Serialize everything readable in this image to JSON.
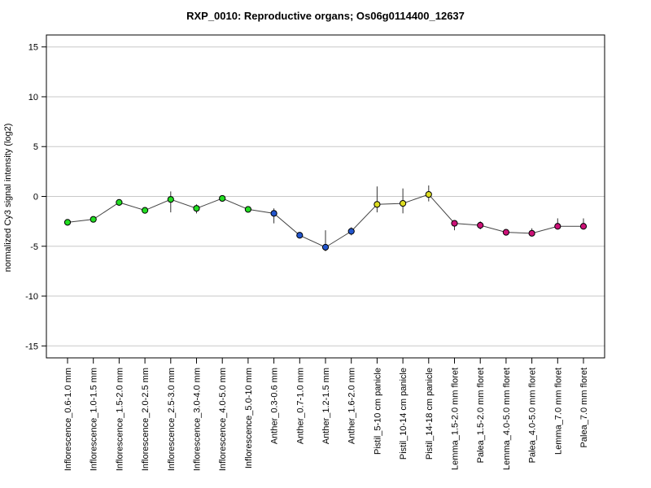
{
  "chart_data": {
    "type": "line",
    "title": "RXP_0010: Reproductive organs; Os06g0114400_12637",
    "xlabel": "",
    "ylabel": "normalized Cy3 signal intensity (log2)",
    "ylim": [
      -16.2,
      16.2
    ],
    "yticks": [
      -15,
      -10,
      -5,
      0,
      5,
      10,
      15
    ],
    "grid": "horizontal",
    "categories": [
      "Inflorescence_0.6-1.0 mm",
      "Inflorescence_1.0-1.5 mm",
      "Inflorescence_1.5-2.0 mm",
      "Inflorescence_2.0-2.5 mm",
      "Inflorescence_2.5-3.0 mm",
      "Inflorescence_3.0-4.0 mm",
      "Inflorescence_4.0-5.0 mm",
      "Inflorescence_5.0-10 mm",
      "Anther_0.3-0.6 mm",
      "Anther_0.7-1.0 mm",
      "Anther_1.2-1.5 mm",
      "Anther_1.6-2.0 mm",
      "Pistil_5-10 cm panicle",
      "Pistil_10-14 cm panicle",
      "Pistil_14-18 cm panicle",
      "Lemma_1.5-2.0 mm floret",
      "Palea_1.5-2.0 mm floret",
      "Lemma_4.0-5.0 mm floret",
      "Palea_4.0-5.0 mm floret",
      "Lemma_7.0 mm floret",
      "Palea_7.0 mm floret"
    ],
    "series": [
      {
        "values": [
          -2.6,
          -2.3,
          -0.6,
          -1.4,
          -0.3,
          -1.2,
          -0.2,
          -1.3,
          -1.7,
          -3.9,
          -5.1,
          -3.5,
          -0.8,
          -0.7,
          0.2,
          -2.7,
          -2.9,
          -3.6,
          -3.7,
          -3.0,
          -3.0
        ],
        "error_low": [
          -2.7,
          -2.5,
          -0.8,
          -1.5,
          -1.6,
          -1.7,
          -0.4,
          -1.4,
          -2.7,
          -4.1,
          -5.5,
          -3.9,
          -1.6,
          -1.7,
          -0.5,
          -3.4,
          -3.3,
          -3.7,
          -3.9,
          -3.3,
          -3.2
        ],
        "error_high": [
          -2.5,
          -2.1,
          -0.4,
          -1.3,
          0.5,
          -0.8,
          0.0,
          -1.2,
          -1.2,
          -3.7,
          -3.4,
          -3.1,
          1.0,
          0.8,
          1.1,
          -2.5,
          -2.5,
          -3.5,
          -3.2,
          -2.2,
          -2.2
        ],
        "colors": [
          "#22dd22",
          "#22dd22",
          "#22dd22",
          "#22dd22",
          "#22dd22",
          "#22dd22",
          "#22dd22",
          "#22dd22",
          "#2255cc",
          "#2255cc",
          "#2255cc",
          "#2255cc",
          "#dddd22",
          "#dddd22",
          "#dddd22",
          "#cc1177",
          "#cc1177",
          "#cc1177",
          "#cc1177",
          "#cc1177",
          "#cc1177"
        ]
      }
    ]
  }
}
